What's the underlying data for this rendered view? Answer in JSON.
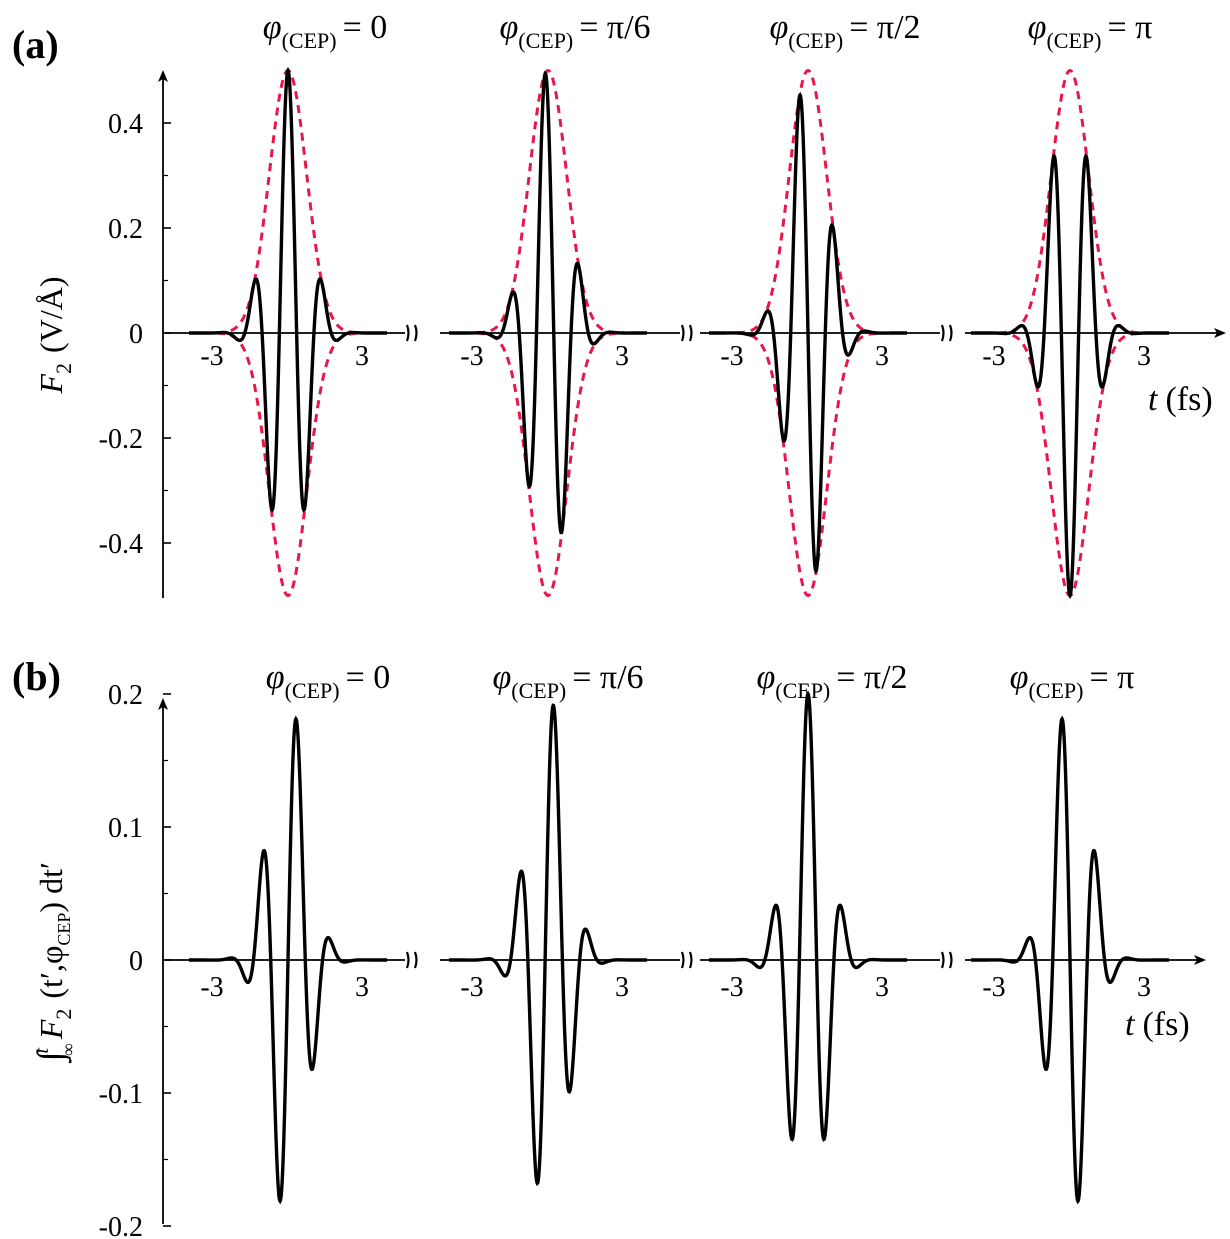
{
  "chart_data": [
    {
      "type": "line",
      "panel_label": "(a)",
      "xlabel": "t (fs)",
      "xlabel_var": "t",
      "xlabel_unit": "(fs)",
      "ylabel": "F2 (V/Å)",
      "ylabel_var": "F",
      "ylabel_sub": "2",
      "ylabel_unit": "(V/Å)",
      "ylim": [
        -0.5,
        0.52
      ],
      "yticks": [
        0.4,
        0.2,
        0,
        -0.2,
        -0.4
      ],
      "ytick_labels": [
        "0.4",
        "0.2",
        "0",
        "-0.2",
        "-0.4"
      ],
      "x_segment_range": [
        -4.5,
        4.5
      ],
      "xtick_labels": [
        "-3",
        "3"
      ],
      "xticks": [
        -3,
        3
      ],
      "broken_axis": true,
      "envelope": {
        "amplitude": 0.5,
        "tau_fs": 1.2,
        "style": "dashed",
        "color": "#e8174a"
      },
      "carrier": {
        "omega_rad_per_fs": 4.0
      },
      "segments": [
        {
          "cep_label": "φ(CEP) = 0",
          "cep_var": "φ",
          "cep_sub": "(CEP)",
          "cep_value": "= 0",
          "phi": 0
        },
        {
          "cep_label": "φ(CEP) = π/6",
          "cep_var": "φ",
          "cep_sub": "(CEP)",
          "cep_value": "= π/6",
          "phi": 0.5236
        },
        {
          "cep_label": "φ(CEP) = π/2",
          "cep_var": "φ",
          "cep_sub": "(CEP)",
          "cep_value": "= π/2",
          "phi": 1.5708
        },
        {
          "cep_label": "φ(CEP) = π",
          "cep_var": "φ",
          "cep_sub": "(CEP)",
          "cep_value": "= π",
          "phi": 3.1416
        }
      ],
      "series": [
        {
          "name": "F2(t)",
          "style": "solid",
          "color": "#000000"
        },
        {
          "name": "envelope",
          "style": "dashed",
          "color": "#e8174a"
        }
      ]
    },
    {
      "type": "line",
      "panel_label": "(b)",
      "xlabel": "t (fs)",
      "xlabel_var": "t",
      "xlabel_unit": "(fs)",
      "ylabel": "∫_-∞^t F2 (t′,φCEP) dt′",
      "ylabel_int": "∫",
      "ylabel_upper": "t",
      "ylabel_lower": "-∞",
      "ylabel_var": "F",
      "ylabel_sub": "2",
      "ylabel_args": "(t′,φ",
      "ylabel_args_sub": "CEP",
      "ylabel_tail": ") dt′",
      "ylim": [
        -0.2,
        0.2
      ],
      "yticks": [
        0.2,
        0.1,
        0,
        -0.1,
        -0.2
      ],
      "ytick_labels": [
        "0.2",
        "0.1",
        "0",
        "-0.1",
        "-0.2"
      ],
      "x_segment_range": [
        -4.5,
        4.5
      ],
      "xtick_labels": [
        "-3",
        "3"
      ],
      "xticks": [
        -3,
        3
      ],
      "broken_axis": true,
      "scale": 0.4,
      "segments": [
        {
          "cep_label": "φ(CEP) = 0",
          "cep_var": "φ",
          "cep_sub": "(CEP)",
          "cep_value": "= 0",
          "phi": 0
        },
        {
          "cep_label": "φ(CEP) = π/6",
          "cep_var": "φ",
          "cep_sub": "(CEP)",
          "cep_value": "= π/6",
          "phi": 0.5236
        },
        {
          "cep_label": "φ(CEP) = π/2",
          "cep_var": "φ",
          "cep_sub": "(CEP)",
          "cep_value": "= π/2",
          "phi": 1.5708
        },
        {
          "cep_label": "φ(CEP) = π",
          "cep_var": "φ",
          "cep_sub": "(CEP)",
          "cep_value": "= π",
          "phi": 3.1416
        }
      ],
      "series": [
        {
          "name": "integral of F2",
          "style": "solid",
          "color": "#000000"
        }
      ]
    }
  ]
}
